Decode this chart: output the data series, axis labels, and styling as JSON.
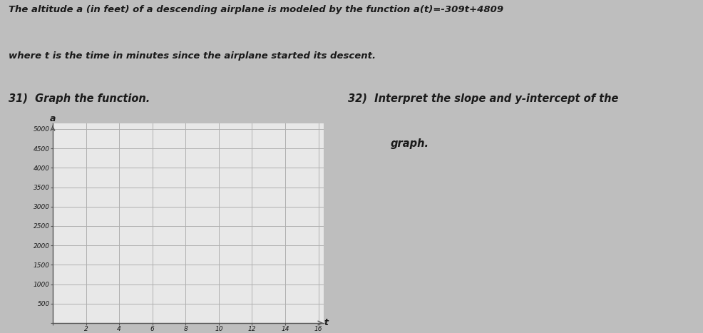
{
  "header_text": "The altitude a (in feet) of a descending airplane is modeled by the function a(t)=-309t+4809",
  "header_text2": "where t is the time in minutes since the airplane started its descent.",
  "q31_label": "31)  Graph the function.",
  "q32_label": "32)  Interpret the slope and y-intercept of the",
  "q32_label2": "graph.",
  "x_label": "t",
  "y_label": "a",
  "x_min": 0,
  "x_max": 16,
  "x_tick_step": 2,
  "y_min": 0,
  "y_max": 5000,
  "y_tick_step": 500,
  "grid_color": "#b0b0b0",
  "axis_color": "#555555",
  "plot_bg_color": "#e8e8e8",
  "page_background": "#bebebe",
  "text_color": "#1a1a1a",
  "header_fontsize": 9.5,
  "label_fontsize": 10.5,
  "tick_fontsize": 6.5
}
